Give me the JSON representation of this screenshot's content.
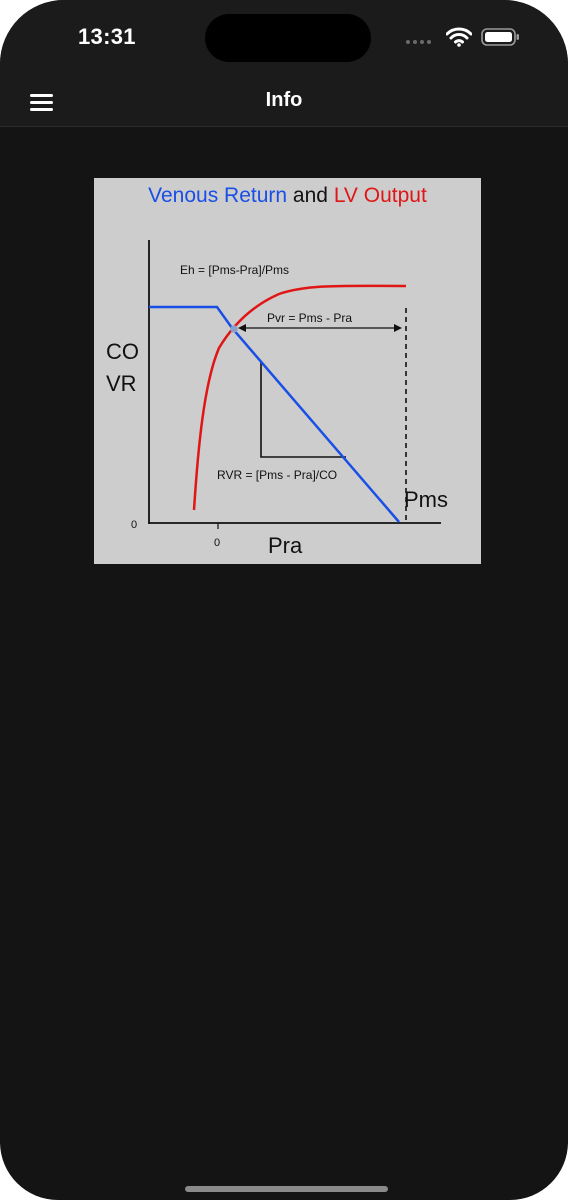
{
  "status_bar": {
    "time": "13:31"
  },
  "nav": {
    "title": "Info"
  },
  "figure": {
    "title_part1": "Venous Return",
    "title_part2": " and ",
    "title_part3": "LV Output",
    "equation_eh": "Eh = [Pms-Pra]/Pms",
    "equation_pvr": "Pvr = Pms - Pra",
    "equation_rvr": "RVR = [Pms - Pra]/CO",
    "y_label_line1": "CO",
    "y_label_line2": "VR",
    "x_label": "Pra",
    "pms_label": "Pms",
    "y_origin_tick": "0",
    "x_origin_tick": "0"
  },
  "colors": {
    "venous_return": "#1a4fe6",
    "lv_output": "#e01616",
    "background": "#141414",
    "figure_background": "#cdcdcd"
  },
  "icons": {
    "menu": "hamburger-menu-icon",
    "wifi": "wifi-icon",
    "battery": "battery-icon",
    "signal": "cellular-signal-icon"
  }
}
